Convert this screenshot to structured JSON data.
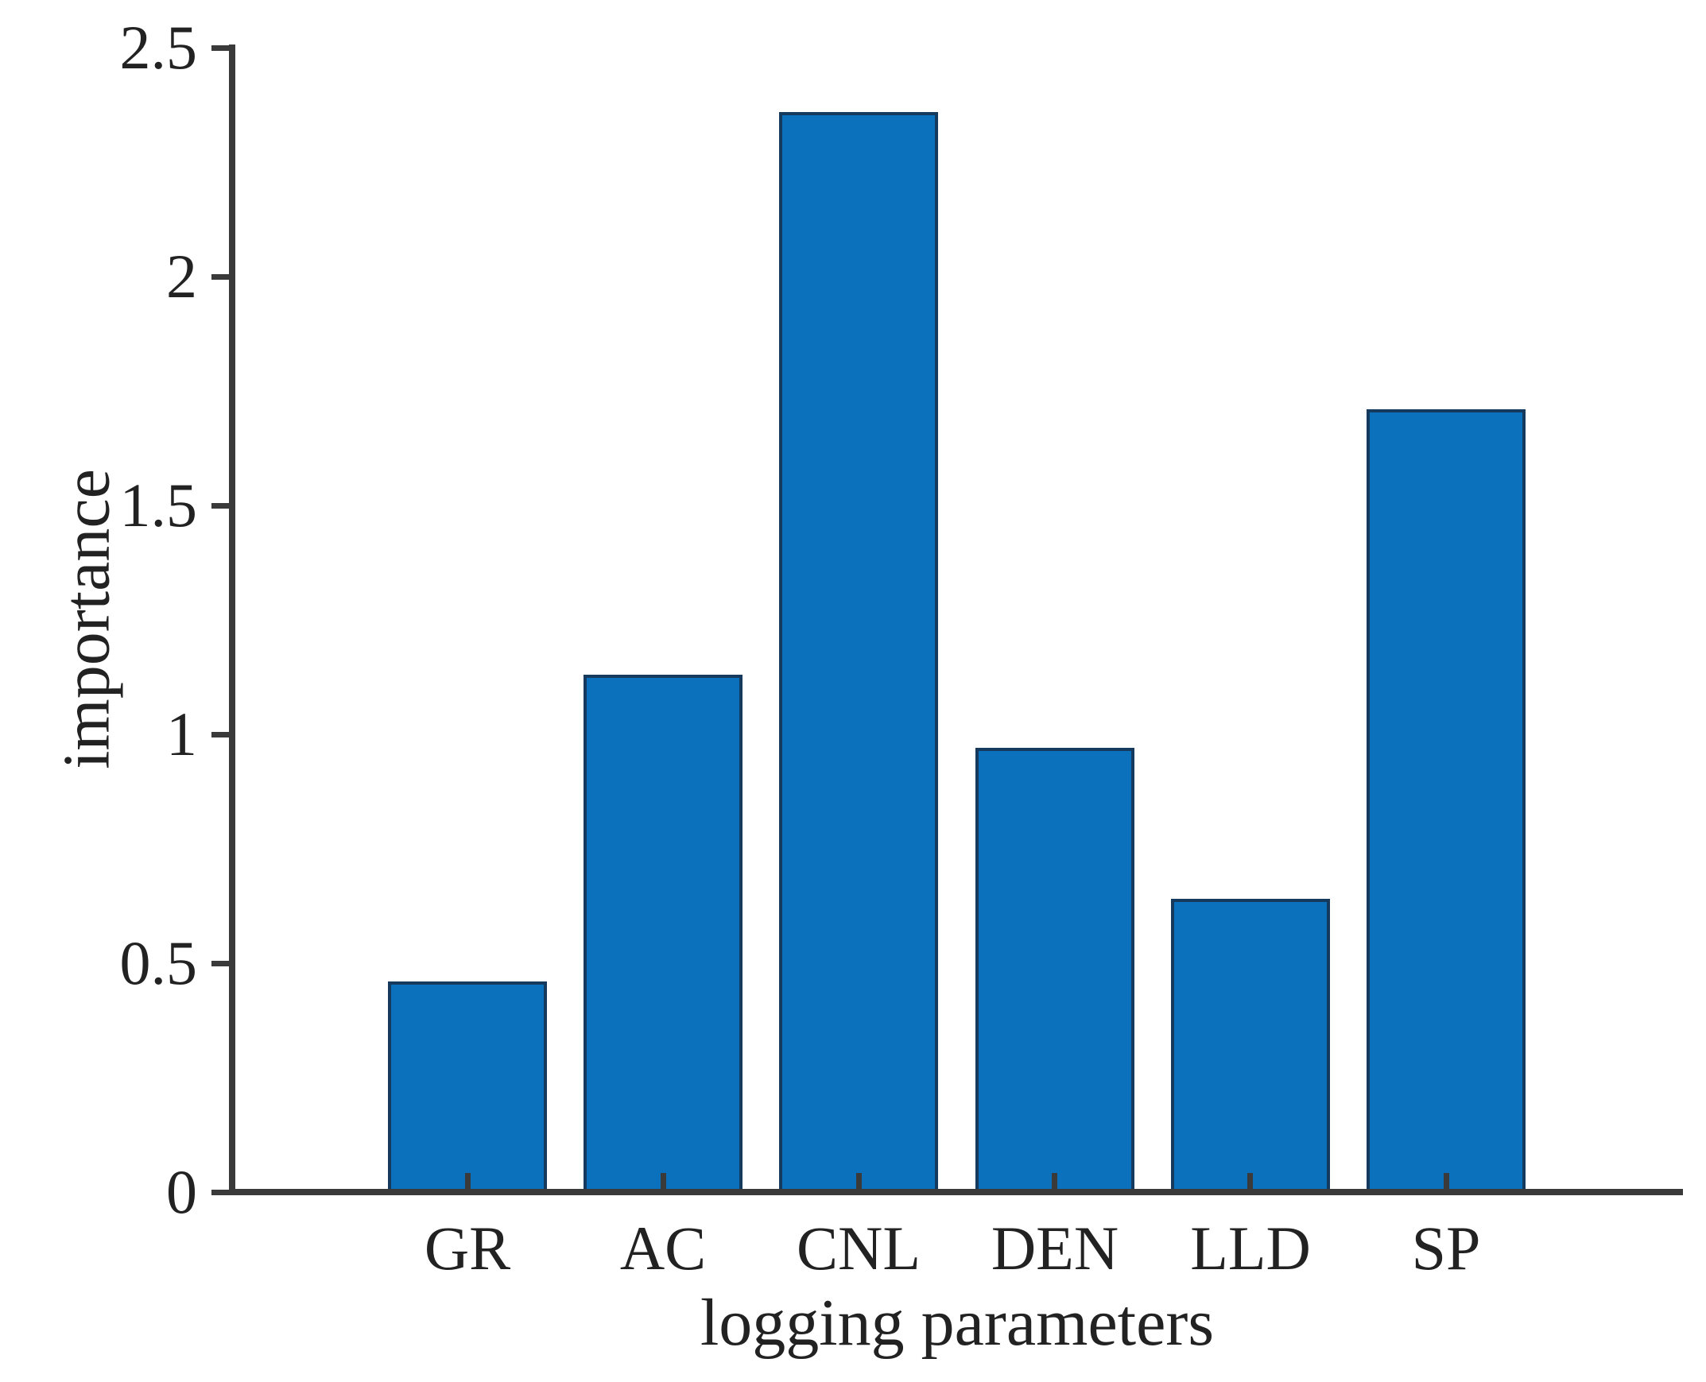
{
  "figure": {
    "background_color": "#ffffff",
    "axis_color": "#3a3a3a",
    "text_color": "#222222"
  },
  "chart_data": {
    "type": "bar",
    "title": "",
    "categories": [
      "GR",
      "AC",
      "CNL",
      "DEN",
      "LLD",
      "SP"
    ],
    "values": [
      0.46,
      1.13,
      2.36,
      0.97,
      0.64,
      1.71
    ],
    "xlabel": "logging parameters",
    "ylabel": "importance",
    "ylim": [
      0,
      2.5
    ],
    "yticks": [
      0,
      0.5,
      1,
      1.5,
      2,
      2.5
    ],
    "ytick_labels": [
      "0",
      "0.5",
      "1",
      "1.5",
      "2",
      "2.5"
    ],
    "grid": false,
    "legend": "none",
    "bar_fill_color": "#0b71bd",
    "bar_edge_color": "#163a5e"
  }
}
